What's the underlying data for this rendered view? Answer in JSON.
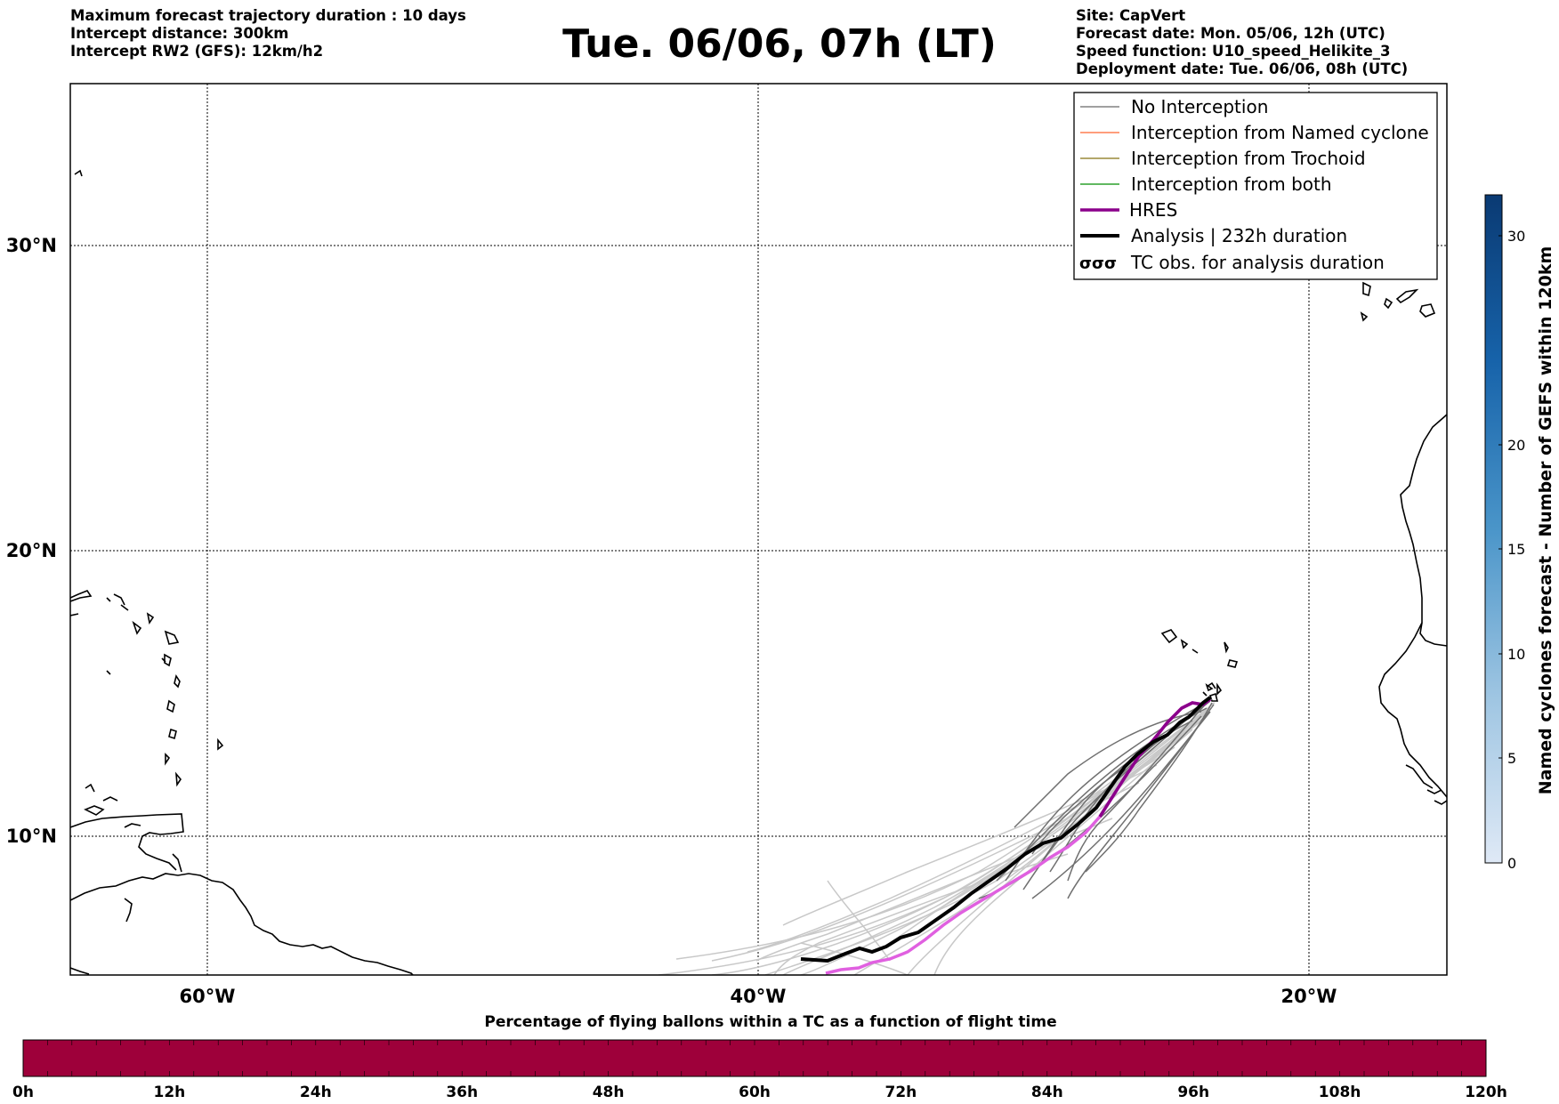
{
  "header_left": [
    "Maximum forecast trajectory duration : 10 days",
    "Intercept distance: 300km",
    "Intercept RW2 (GFS):  12km/h2"
  ],
  "title": "Tue. 06/06, 07h (LT)",
  "header_right": [
    "Site: CapVert",
    "Forecast date: Mon. 05/06, 12h (UTC)",
    "Speed function: U10_speed_Helikite_3",
    "Deployment date: Tue. 06/06, 08h (UTC)"
  ],
  "map": {
    "lat_labels": [
      "30°N",
      "20°N",
      "10°N"
    ],
    "lon_labels": [
      "60°W",
      "40°W",
      "20°W"
    ]
  },
  "legend": {
    "items": [
      {
        "label": "No Interception",
        "color": "#808080"
      },
      {
        "label": "Interception from Named cyclone",
        "color": "#ff7f50"
      },
      {
        "label": "Interception from Trochoid",
        "color": "#9a8a3a"
      },
      {
        "label": "Interception from both",
        "color": "#2ca02c"
      },
      {
        "label": "HRES",
        "color": "#8b008b"
      },
      {
        "label": "Analysis | 232h duration",
        "color": "#000000"
      },
      {
        "label": "TC obs. for analysis duration",
        "icon": "cyclone-icon"
      }
    ]
  },
  "colorbar": {
    "label": "Named cyclones forecast - Number of GEFS within 120km",
    "ticks": [
      "30",
      "20",
      "15",
      "10",
      "5",
      "0"
    ]
  },
  "flight_bar": {
    "title": "Percentage of flying ballons within a TC as a function of flight time",
    "color": "#9e003a",
    "ticks": [
      "0h",
      "12h",
      "24h",
      "36h",
      "48h",
      "60h",
      "72h",
      "84h",
      "96h",
      "108h",
      "120h"
    ]
  }
}
